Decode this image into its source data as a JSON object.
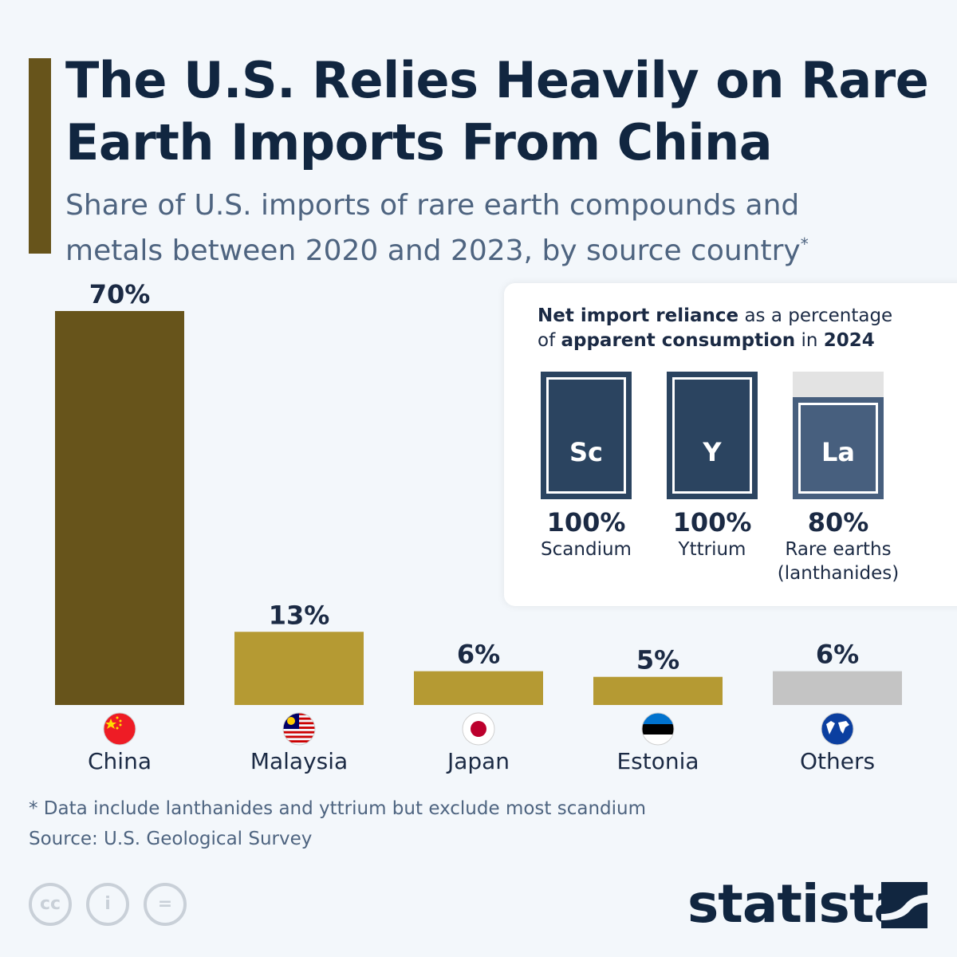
{
  "title": "The U.S. Relies Heavily on Rare Earth Imports From China",
  "subtitle": "Share of U.S. imports of rare earth compounds and metals between 2020 and 2023, by source country",
  "subtitle_mark": "*",
  "chart_data": {
    "type": "bar",
    "categories": [
      "China",
      "Malaysia",
      "Japan",
      "Estonia",
      "Others"
    ],
    "values": [
      70,
      13,
      6,
      5,
      6
    ],
    "labels": [
      "70%",
      "13%",
      "6%",
      "5%",
      "6%"
    ],
    "colors": [
      "#67541b",
      "#b59a33",
      "#b59a33",
      "#b59a33",
      "#c4c4c4"
    ],
    "flags": [
      "china-flag",
      "malaysia-flag",
      "japan-flag",
      "estonia-flag",
      "globe"
    ],
    "ylim": [
      0,
      70
    ],
    "grid": false
  },
  "inset": {
    "title_parts": [
      "Net import reliance",
      " as a percentage of ",
      "apparent consumption",
      " in ",
      "2024"
    ],
    "elements": [
      {
        "symbol": "Sc",
        "value": 100,
        "pct": "100%",
        "name": "Scandium",
        "color": "#2b4460"
      },
      {
        "symbol": "Y",
        "value": 100,
        "pct": "100%",
        "name": "Yttrium",
        "color": "#2b4460"
      },
      {
        "symbol": "La",
        "value": 80,
        "pct": "80%",
        "name": "Rare earths (lanthanides)",
        "color": "#475f7e"
      }
    ]
  },
  "footnote": "* Data include lanthanides and yttrium but exclude most scandium",
  "source": "Source: U.S. Geological Survey",
  "license_icons": [
    "cc",
    "by",
    "nd"
  ],
  "license_text": [
    "cc",
    "i",
    "="
  ],
  "brand": "statista"
}
